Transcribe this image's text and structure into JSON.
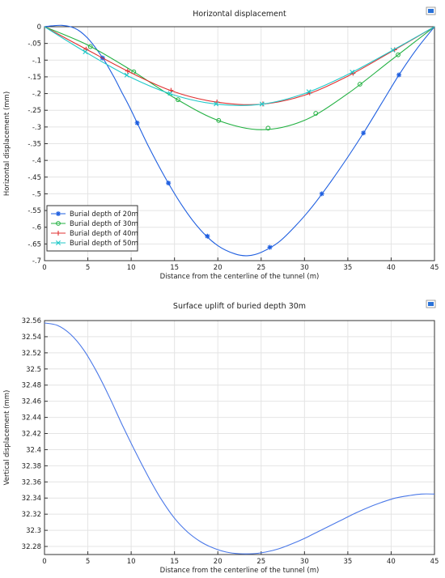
{
  "export_icon": "export-plot-icon",
  "chart_data": [
    {
      "type": "line",
      "title": "Horizontal displacement",
      "xlabel": "Distance from the centerline of the tunnel (m)",
      "ylabel": "Horizontal displacement (mm)",
      "xlim": [
        0,
        45
      ],
      "ylim": [
        -0.7,
        0
      ],
      "xticks": [
        0,
        5,
        10,
        15,
        20,
        25,
        30,
        35,
        40,
        45
      ],
      "yticks": [
        0,
        -0.05,
        -0.1,
        -0.15,
        -0.2,
        -0.25,
        -0.3,
        -0.35,
        -0.4,
        -0.45,
        -0.5,
        -0.55,
        -0.6,
        -0.65,
        -0.7
      ],
      "grid": true,
      "legend_position": "bottom-left",
      "series": [
        {
          "name": "Burial depth of 20m",
          "color": "#1f5fe0",
          "marker": "star",
          "x": [
            0,
            1,
            2,
            3,
            4,
            5,
            6,
            7,
            8,
            9,
            10,
            12,
            14,
            16,
            18,
            20,
            22,
            23.5,
            25,
            27,
            29,
            31,
            33,
            35,
            37,
            39,
            41,
            43,
            45
          ],
          "y": [
            0,
            0.003,
            0.004,
            0.0,
            -0.012,
            -0.035,
            -0.067,
            -0.105,
            -0.15,
            -0.2,
            -0.25,
            -0.358,
            -0.455,
            -0.54,
            -0.608,
            -0.655,
            -0.68,
            -0.685,
            -0.675,
            -0.645,
            -0.595,
            -0.535,
            -0.465,
            -0.39,
            -0.31,
            -0.225,
            -0.14,
            -0.065,
            0
          ],
          "marker_x": [
            6.7,
            10.7,
            14.3,
            18.8,
            26,
            32,
            36.8,
            40.9
          ]
        },
        {
          "name": "Burial depth of 30m",
          "color": "#20b040",
          "marker": "circle",
          "x": [
            0,
            5,
            10,
            15,
            20,
            25,
            30,
            35,
            40,
            45
          ],
          "y": [
            0,
            -0.055,
            -0.13,
            -0.213,
            -0.28,
            -0.308,
            -0.28,
            -0.2,
            -0.1,
            0
          ],
          "marker_x": [
            5.3,
            10.3,
            15.4,
            20.1,
            25.8,
            31.3,
            36.4,
            40.8
          ]
        },
        {
          "name": "Burial depth of 40m",
          "color": "#e03030",
          "marker": "plus",
          "x": [
            0,
            5,
            10,
            15,
            20,
            25,
            30,
            35,
            40,
            45
          ],
          "y": [
            0,
            -0.07,
            -0.138,
            -0.195,
            -0.226,
            -0.232,
            -0.205,
            -0.148,
            -0.075,
            0
          ],
          "marker_x": [
            4.8,
            9.6,
            14.6,
            19.9,
            25.2,
            30.6,
            35.6,
            40.4
          ]
        },
        {
          "name": "Burial depth of 50m",
          "color": "#20c8c8",
          "marker": "cross",
          "x": [
            0,
            5,
            10,
            15,
            20,
            25,
            30,
            35,
            40,
            45
          ],
          "y": [
            0,
            -0.08,
            -0.152,
            -0.205,
            -0.232,
            -0.232,
            -0.2,
            -0.143,
            -0.073,
            0
          ],
          "marker_x": [
            4.7,
            9.5,
            14.5,
            19.8,
            25.1,
            30.5,
            35.5,
            40.2
          ]
        }
      ]
    },
    {
      "type": "line",
      "title": "Surface uplift of buried depth 30m",
      "xlabel": "Distance from the centerline of the tunnel (m)",
      "ylabel": "Vertical displacement (mm)",
      "xlim": [
        0,
        45
      ],
      "ylim": [
        32.27,
        32.56
      ],
      "xticks": [
        0,
        5,
        10,
        15,
        20,
        25,
        30,
        35,
        40,
        45
      ],
      "yticks": [
        32.56,
        32.54,
        32.52,
        32.5,
        32.48,
        32.46,
        32.44,
        32.42,
        32.4,
        32.38,
        32.36,
        32.34,
        32.32,
        32.3,
        32.28
      ],
      "grid": true,
      "series": [
        {
          "color": "#4a78e8",
          "x": [
            0,
            1.5,
            3,
            4.5,
            6,
            7.5,
            9,
            10.5,
            12,
            13.5,
            15,
            16.5,
            18,
            19.5,
            21,
            22.5,
            24,
            25.5,
            27,
            28.5,
            30,
            31.5,
            33,
            34.5,
            36,
            37.5,
            39,
            40.5,
            42,
            43.5,
            45
          ],
          "y": [
            32.557,
            32.554,
            32.543,
            32.524,
            32.497,
            32.465,
            32.43,
            32.397,
            32.366,
            32.338,
            32.315,
            32.298,
            32.286,
            32.278,
            32.273,
            32.271,
            32.271,
            32.273,
            32.277,
            32.283,
            32.29,
            32.298,
            32.306,
            32.314,
            32.322,
            32.329,
            32.335,
            32.34,
            32.343,
            32.345,
            32.345
          ]
        }
      ]
    }
  ]
}
